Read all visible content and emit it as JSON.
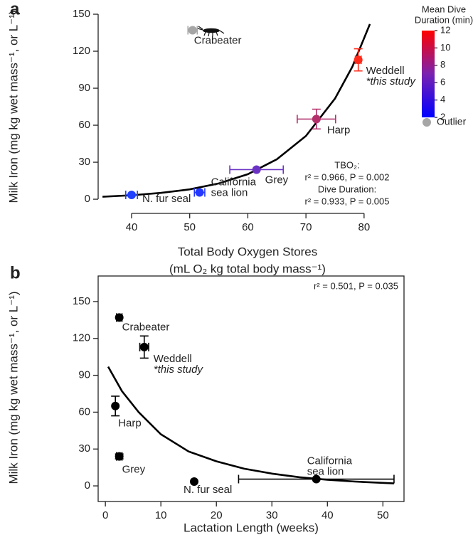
{
  "chart_data": [
    {
      "type": "scatter",
      "panel_label": "a",
      "x_label": [
        "Total Body Oxygen Stores",
        "(mL O₂ kg total body mass⁻¹)"
      ],
      "y_label": "Milk Iron (mg kg wet mass⁻¹, or L⁻¹)",
      "xlim": [
        34.25,
        83.2
      ],
      "ylim": [
        -11.5,
        150
      ],
      "xticks": [
        40,
        50,
        60,
        70,
        80
      ],
      "yticks": [
        0,
        30,
        60,
        90,
        120,
        150
      ],
      "series": [
        {
          "label": [
            "Crabeater"
          ],
          "x": 50.5,
          "y": 137,
          "x_err": 0.8,
          "y_err": null,
          "color": "#a6a6a6"
        },
        {
          "label": [
            "Weddell",
            "*this study"
          ],
          "x": 79,
          "y": 113,
          "x_err": 0.5,
          "y_err": 9,
          "color": "#ff2a1a"
        },
        {
          "label": [
            "Harp"
          ],
          "x": 71.8,
          "y": 65,
          "x_err": 3.3,
          "y_err": 8,
          "color": "#b3306c"
        },
        {
          "label": [
            "Grey"
          ],
          "x": 61.5,
          "y": 24,
          "x_err": 4.6,
          "y_err": null,
          "color": "#6b33c4"
        },
        {
          "label": [
            "California",
            "sea lion"
          ],
          "x": 51.7,
          "y": 5.5,
          "x_err": 0.9,
          "y_err": null,
          "color": "#2438ff"
        },
        {
          "label": [
            "N. fur seal"
          ],
          "x": 40,
          "y": 3.5,
          "x_err": 1,
          "y_err": null,
          "color": "#1f40ff"
        }
      ],
      "fit": {
        "x": [
          35,
          40,
          45,
          50,
          55,
          60,
          65,
          70,
          75,
          78,
          81
        ],
        "y": [
          2,
          3.2,
          5.1,
          8,
          12.8,
          20.3,
          32.4,
          51.3,
          81.6,
          107.6,
          142
        ]
      },
      "annotations": [
        "TBO₂:",
        "r² = 0.966, P = 0.002",
        "Dive Duration:",
        "r² = 0.933, P = 0.005"
      ],
      "colorbar": {
        "title": [
          "Mean Dive",
          "Duration (min)"
        ],
        "lim": [
          2,
          12
        ],
        "ticks": [
          2,
          4,
          6,
          8,
          10,
          12
        ],
        "colors": [
          "#0000ff",
          "#7a22b0",
          "#ff0000"
        ]
      },
      "legend": {
        "label": "Outlier",
        "color": "#a6a6a6"
      }
    },
    {
      "type": "scatter",
      "panel_label": "b",
      "x_label": [
        "Lactation Length (weeks)"
      ],
      "y_label": "Milk Iron (mg kg wet mass⁻¹, or L⁻¹)",
      "xlim": [
        -1.3,
        53.8
      ],
      "ylim": [
        -12.7,
        170.8
      ],
      "xticks": [
        0,
        10,
        20,
        30,
        40,
        50
      ],
      "yticks": [
        0,
        30,
        60,
        90,
        120,
        150
      ],
      "series": [
        {
          "label": [
            "Crabeater"
          ],
          "x": 2.5,
          "y": 137,
          "x_err": 0.5,
          "y_err": null,
          "color": "#000000"
        },
        {
          "label": [
            "Weddell",
            "*this study"
          ],
          "x": 7,
          "y": 113,
          "x_err": 0.8,
          "y_err": 9,
          "color": "#000000"
        },
        {
          "label": [
            "Harp"
          ],
          "x": 1.8,
          "y": 65,
          "x_err": null,
          "y_err": 8,
          "color": "#000000"
        },
        {
          "label": [
            "Grey"
          ],
          "x": 2.5,
          "y": 24,
          "x_err": 0.5,
          "y_err": 2,
          "color": "#000000"
        },
        {
          "label": [
            "California",
            "sea lion"
          ],
          "x": 38,
          "y": 5.5,
          "x_err": 14,
          "y_err": null,
          "color": "#000000"
        },
        {
          "label": [
            "N. fur seal"
          ],
          "x": 16,
          "y": 3.5,
          "x_err": null,
          "y_err": null,
          "color": "#000000"
        }
      ],
      "fit": {
        "x": [
          0.5,
          3,
          6,
          10,
          15,
          20,
          25,
          30,
          35,
          40,
          45,
          52
        ],
        "y": [
          97,
          77,
          60,
          42,
          28,
          20,
          14,
          10,
          7,
          5,
          3.5,
          2
        ]
      },
      "annotations": [
        "r² = 0.501, P = 0.035"
      ]
    }
  ]
}
